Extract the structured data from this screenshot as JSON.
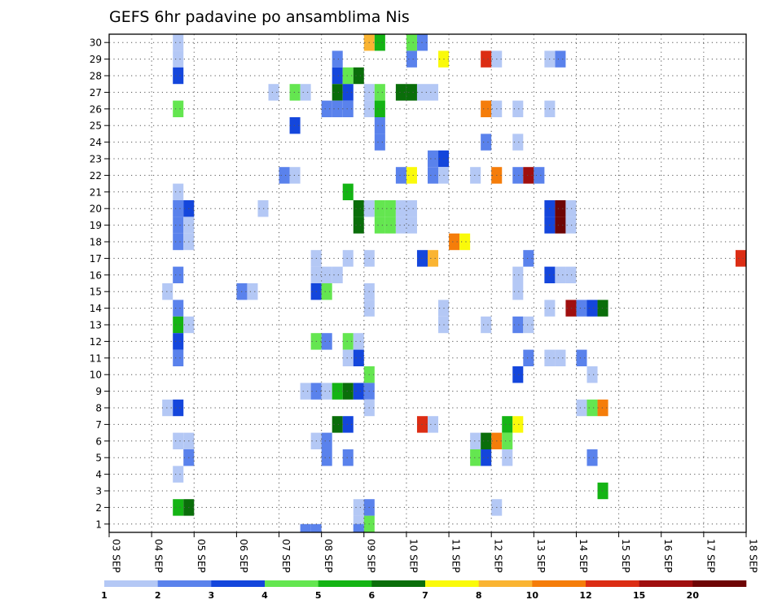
{
  "chart_data": {
    "type": "heatmap",
    "title": "GEFS 6hr padavine po ansamblima Nis",
    "x_tick_labels": [
      "03 SEP",
      "04 SEP",
      "05 SEP",
      "06 SEP",
      "07 SEP",
      "08 SEP",
      "09 SEP",
      "10 SEP",
      "11 SEP",
      "12 SEP",
      "13 SEP",
      "14 SEP",
      "15 SEP",
      "16 SEP",
      "17 SEP",
      "18 SEP"
    ],
    "y_tick_labels": [
      "1",
      "2",
      "3",
      "4",
      "5",
      "6",
      "7",
      "8",
      "9",
      "10",
      "11",
      "12",
      "13",
      "14",
      "15",
      "16",
      "17",
      "18",
      "19",
      "20",
      "21",
      "22",
      "23",
      "24",
      "25",
      "26",
      "27",
      "28",
      "29",
      "30"
    ],
    "x_range": [
      0,
      60
    ],
    "y_range": [
      0.5,
      30.5
    ],
    "grid": true,
    "colorbar": {
      "labels": [
        "1",
        "2",
        "3",
        "4",
        "5",
        "6",
        "7",
        "8",
        "10",
        "12",
        "15",
        "20"
      ],
      "colors": [
        "#b4c8f5",
        "#5a82ec",
        "#1446dc",
        "#64e650",
        "#14b414",
        "#0a6e0a",
        "#fafa0a",
        "#fab432",
        "#f57d0a",
        "#dc2d14",
        "#a00f0f",
        "#6e0505"
      ]
    },
    "cells": [
      [
        6,
        30,
        0
      ],
      [
        29,
        30,
        1
      ],
      [
        28,
        30,
        3
      ],
      [
        24,
        30,
        7
      ],
      [
        25,
        30,
        4
      ],
      [
        6,
        29,
        0
      ],
      [
        21,
        29,
        1
      ],
      [
        28,
        29,
        1
      ],
      [
        31,
        29,
        6
      ],
      [
        36,
        29,
        0
      ],
      [
        35,
        29,
        9
      ],
      [
        42,
        29,
        1
      ],
      [
        41,
        29,
        0
      ],
      [
        6,
        28,
        2
      ],
      [
        21,
        28,
        2
      ],
      [
        22,
        28,
        3
      ],
      [
        23,
        28,
        5
      ],
      [
        15,
        27,
        0
      ],
      [
        17,
        27,
        3
      ],
      [
        18,
        27,
        0
      ],
      [
        21,
        27,
        5
      ],
      [
        22,
        27,
        2
      ],
      [
        24,
        27,
        0
      ],
      [
        25,
        27,
        3
      ],
      [
        27,
        27,
        5
      ],
      [
        28,
        27,
        5
      ],
      [
        29,
        27,
        0
      ],
      [
        30,
        27,
        0
      ],
      [
        6,
        26,
        3
      ],
      [
        20,
        26,
        1
      ],
      [
        21,
        26,
        1
      ],
      [
        22,
        26,
        1
      ],
      [
        24,
        26,
        0
      ],
      [
        25,
        26,
        4
      ],
      [
        35,
        26,
        8
      ],
      [
        36,
        26,
        0
      ],
      [
        38,
        26,
        0
      ],
      [
        41,
        26,
        0
      ],
      [
        17,
        25,
        2
      ],
      [
        25,
        25,
        1
      ],
      [
        25,
        24,
        1
      ],
      [
        35,
        24,
        1
      ],
      [
        38,
        24,
        0
      ],
      [
        30,
        23,
        1
      ],
      [
        31,
        23,
        2
      ],
      [
        16,
        22,
        1
      ],
      [
        17,
        22,
        0
      ],
      [
        27,
        22,
        1
      ],
      [
        28,
        22,
        6
      ],
      [
        30,
        22,
        1
      ],
      [
        31,
        22,
        0
      ],
      [
        34,
        22,
        0
      ],
      [
        36,
        22,
        8
      ],
      [
        38,
        22,
        1
      ],
      [
        39,
        22,
        10
      ],
      [
        40,
        22,
        1
      ],
      [
        6,
        21,
        0
      ],
      [
        22,
        21,
        4
      ],
      [
        6,
        20,
        1
      ],
      [
        7,
        20,
        2
      ],
      [
        14,
        20,
        0
      ],
      [
        23,
        20,
        5
      ],
      [
        24,
        20,
        0
      ],
      [
        25,
        20,
        3
      ],
      [
        26,
        20,
        3
      ],
      [
        27,
        20,
        0
      ],
      [
        28,
        20,
        0
      ],
      [
        41,
        20,
        2
      ],
      [
        42,
        20,
        11
      ],
      [
        43,
        20,
        0
      ],
      [
        6,
        19,
        1
      ],
      [
        7,
        19,
        0
      ],
      [
        23,
        19,
        5
      ],
      [
        25,
        19,
        3
      ],
      [
        26,
        19,
        3
      ],
      [
        27,
        19,
        0
      ],
      [
        28,
        19,
        0
      ],
      [
        41,
        19,
        2
      ],
      [
        42,
        19,
        11
      ],
      [
        43,
        19,
        0
      ],
      [
        6,
        18,
        1
      ],
      [
        7,
        18,
        0
      ],
      [
        32,
        18,
        8
      ],
      [
        33,
        18,
        6
      ],
      [
        19,
        17,
        0
      ],
      [
        22,
        17,
        0
      ],
      [
        24,
        17,
        0
      ],
      [
        29,
        17,
        2
      ],
      [
        30,
        17,
        7
      ],
      [
        39,
        17,
        1
      ],
      [
        59,
        17,
        9
      ],
      [
        6,
        16,
        1
      ],
      [
        19,
        16,
        0
      ],
      [
        20,
        16,
        0
      ],
      [
        21,
        16,
        0
      ],
      [
        38,
        16,
        0
      ],
      [
        41,
        16,
        2
      ],
      [
        42,
        16,
        0
      ],
      [
        43,
        16,
        0
      ],
      [
        5,
        15,
        0
      ],
      [
        12,
        15,
        1
      ],
      [
        13,
        15,
        0
      ],
      [
        19,
        15,
        2
      ],
      [
        20,
        15,
        3
      ],
      [
        24,
        15,
        0
      ],
      [
        38,
        15,
        0
      ],
      [
        6,
        14,
        1
      ],
      [
        24,
        14,
        0
      ],
      [
        31,
        14,
        0
      ],
      [
        41,
        14,
        0
      ],
      [
        43,
        14,
        10
      ],
      [
        44,
        14,
        1
      ],
      [
        45,
        14,
        2
      ],
      [
        46,
        14,
        5
      ],
      [
        6,
        13,
        4
      ],
      [
        7,
        13,
        0
      ],
      [
        31,
        13,
        0
      ],
      [
        35,
        13,
        0
      ],
      [
        38,
        13,
        1
      ],
      [
        39,
        13,
        0
      ],
      [
        6,
        12,
        2
      ],
      [
        19,
        12,
        3
      ],
      [
        20,
        12,
        1
      ],
      [
        22,
        12,
        3
      ],
      [
        23,
        12,
        0
      ],
      [
        6,
        11,
        1
      ],
      [
        22,
        11,
        0
      ],
      [
        23,
        11,
        2
      ],
      [
        39,
        11,
        1
      ],
      [
        41,
        11,
        0
      ],
      [
        42,
        11,
        0
      ],
      [
        44,
        11,
        1
      ],
      [
        24,
        10,
        3
      ],
      [
        38,
        10,
        2
      ],
      [
        45,
        10,
        0
      ],
      [
        18,
        9,
        0
      ],
      [
        19,
        9,
        1
      ],
      [
        20,
        9,
        0
      ],
      [
        21,
        9,
        4
      ],
      [
        22,
        9,
        5
      ],
      [
        23,
        9,
        2
      ],
      [
        24,
        9,
        1
      ],
      [
        5,
        8,
        0
      ],
      [
        6,
        8,
        2
      ],
      [
        24,
        8,
        0
      ],
      [
        44,
        8,
        0
      ],
      [
        45,
        8,
        3
      ],
      [
        46,
        8,
        8
      ],
      [
        21,
        7,
        5
      ],
      [
        22,
        7,
        2
      ],
      [
        29,
        7,
        9
      ],
      [
        30,
        7,
        0
      ],
      [
        37,
        7,
        4
      ],
      [
        38,
        7,
        6
      ],
      [
        6,
        6,
        0
      ],
      [
        7,
        6,
        0
      ],
      [
        19,
        6,
        0
      ],
      [
        20,
        6,
        1
      ],
      [
        34,
        6,
        0
      ],
      [
        35,
        6,
        5
      ],
      [
        36,
        6,
        8
      ],
      [
        37,
        6,
        3
      ],
      [
        7,
        5,
        1
      ],
      [
        20,
        5,
        1
      ],
      [
        22,
        5,
        1
      ],
      [
        34,
        5,
        3
      ],
      [
        35,
        5,
        2
      ],
      [
        37,
        5,
        0
      ],
      [
        45,
        5,
        1
      ],
      [
        6,
        4,
        0
      ],
      [
        46,
        3,
        4
      ],
      [
        6,
        2,
        4
      ],
      [
        7,
        2,
        5
      ],
      [
        23,
        2,
        0
      ],
      [
        24,
        2,
        1
      ],
      [
        36,
        2,
        0
      ],
      [
        23,
        1,
        0
      ],
      [
        24,
        1,
        3
      ],
      [
        18,
        0.5,
        1
      ],
      [
        19,
        0.5,
        1
      ],
      [
        23,
        0.5,
        1
      ]
    ]
  }
}
